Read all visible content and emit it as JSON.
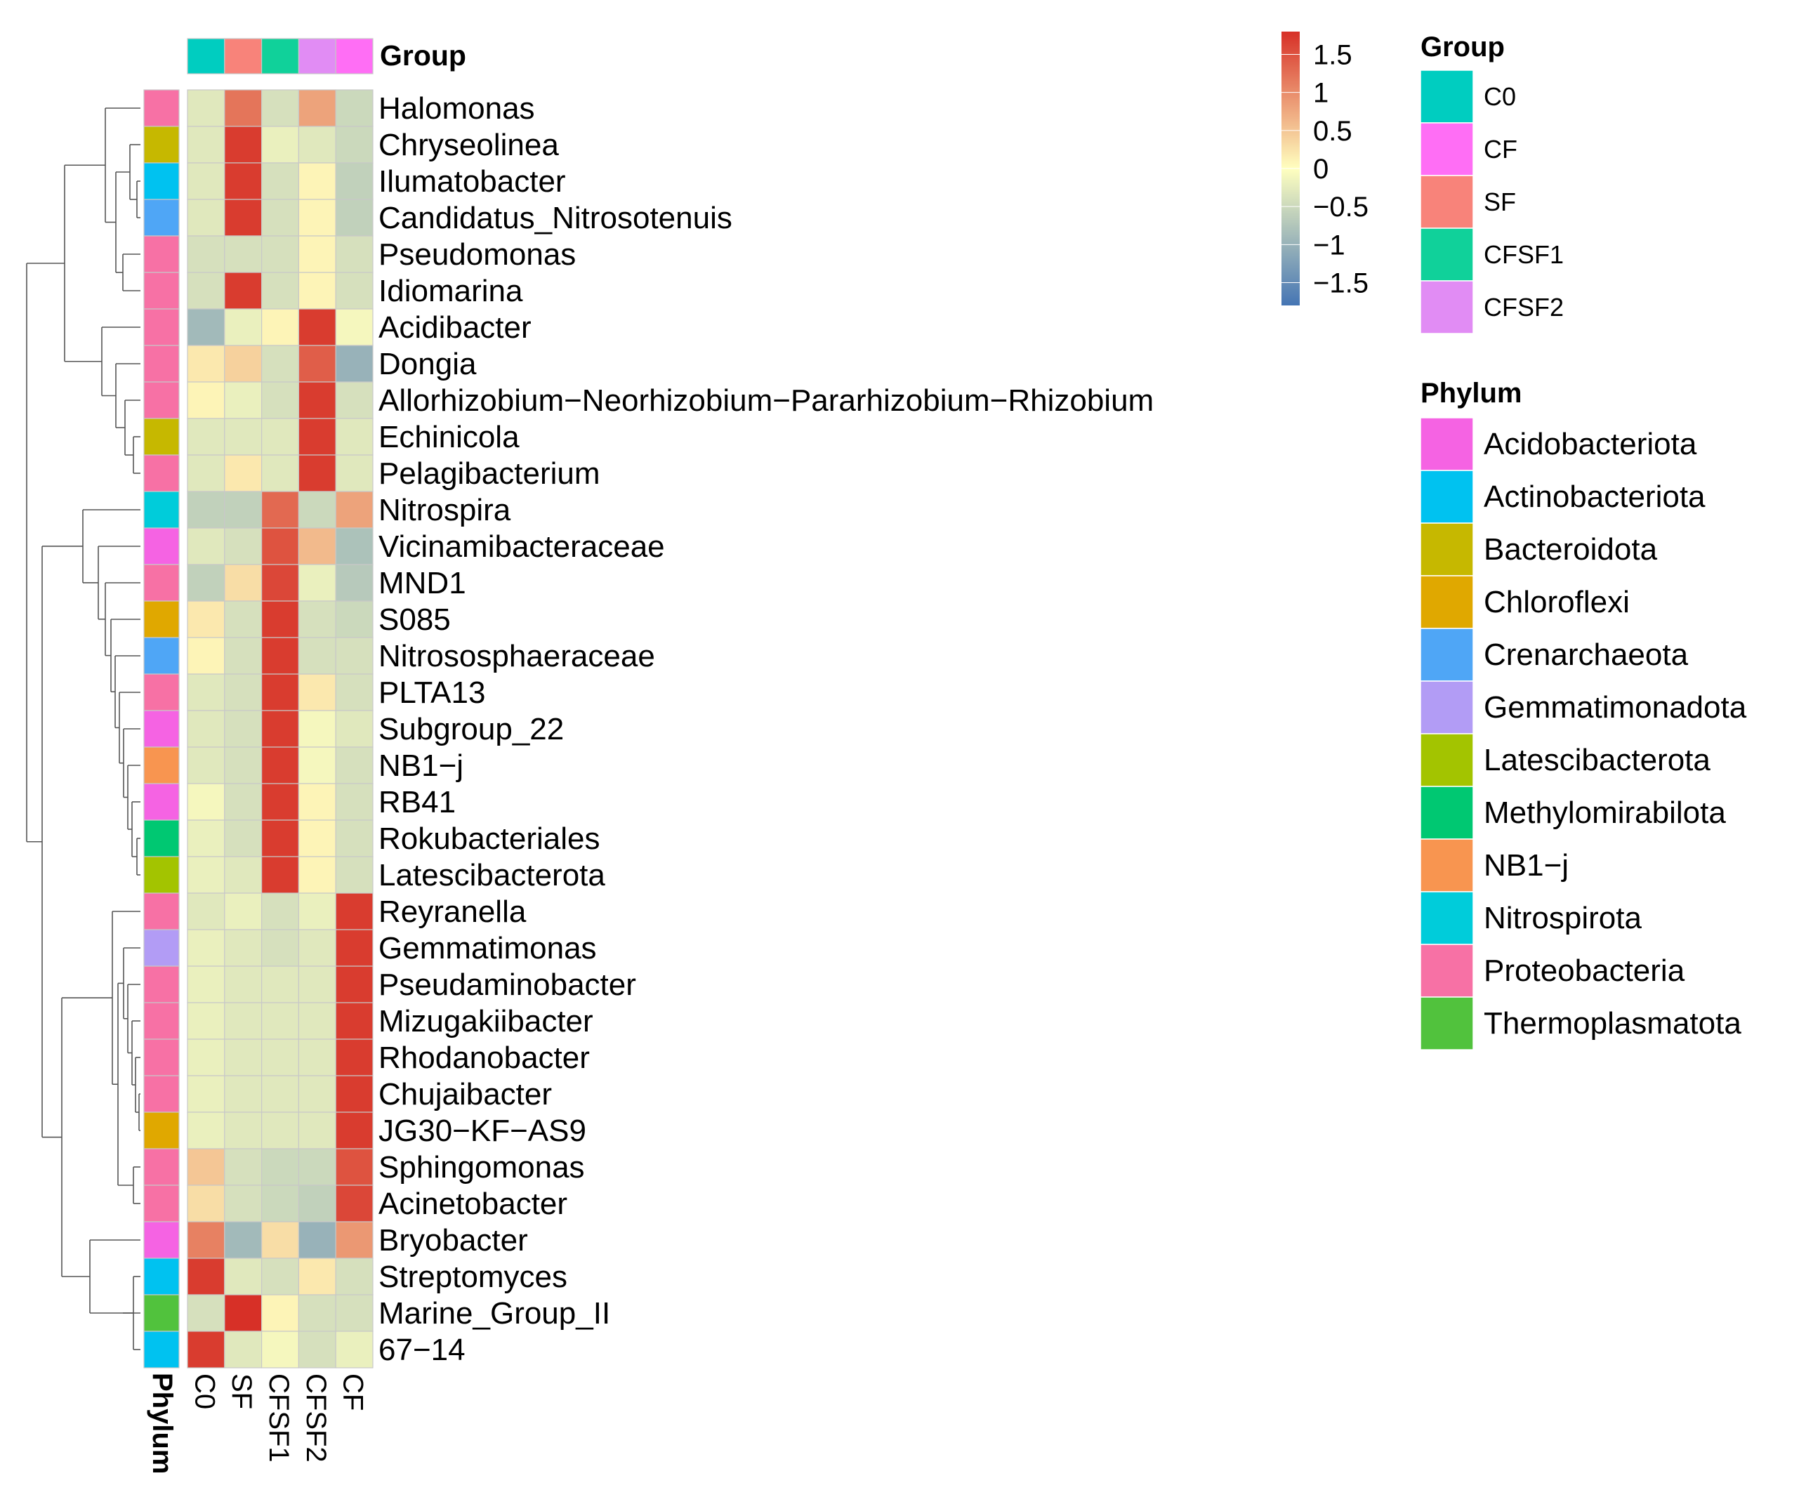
{
  "chart_data": {
    "type": "heatmap",
    "group_annotation_label": "Group",
    "phylum_annotation_label": "Phylum",
    "columns": [
      "C0",
      "SF",
      "CFSF1",
      "CFSF2",
      "CF"
    ],
    "column_groups": [
      "C0",
      "SF",
      "CFSF1",
      "CFSF2",
      "CF"
    ],
    "rows": [
      {
        "name": "Halomonas",
        "phylum": "Proteobacteria",
        "values": [
          -0.3,
          1.2,
          -0.4,
          0.8,
          -0.5
        ]
      },
      {
        "name": "Chryseolinea",
        "phylum": "Bacteroidota",
        "values": [
          -0.3,
          1.7,
          -0.2,
          -0.3,
          -0.5
        ]
      },
      {
        "name": "Ilumatobacter",
        "phylum": "Actinobacteriota",
        "values": [
          -0.3,
          1.7,
          -0.4,
          0.1,
          -0.6
        ]
      },
      {
        "name": "Candidatus_Nitrosotenuis",
        "phylum": "Crenarchaeota",
        "values": [
          -0.3,
          1.7,
          -0.4,
          0.1,
          -0.6
        ]
      },
      {
        "name": "Pseudomonas",
        "phylum": "Proteobacteria",
        "values": [
          -0.4,
          -0.4,
          -0.4,
          0.1,
          -0.4
        ]
      },
      {
        "name": "Idiomarina",
        "phylum": "Proteobacteria",
        "values": [
          -0.4,
          1.7,
          -0.4,
          0.1,
          -0.4
        ]
      },
      {
        "name": "Acidibacter",
        "phylum": "Proteobacteria",
        "values": [
          -0.9,
          -0.2,
          0.1,
          1.7,
          -0.1
        ]
      },
      {
        "name": "Dongia",
        "phylum": "Proteobacteria",
        "values": [
          0.2,
          0.4,
          -0.4,
          1.4,
          -1.0
        ]
      },
      {
        "name": "Allorhizobium-Neorhizobium-Pararhizobium-Rhizobium",
        "phylum": "Proteobacteria",
        "values": [
          0.1,
          -0.2,
          -0.4,
          1.7,
          -0.4
        ]
      },
      {
        "name": "Echinicola",
        "phylum": "Bacteroidota",
        "values": [
          -0.3,
          -0.3,
          -0.3,
          1.7,
          -0.3
        ]
      },
      {
        "name": "Pelagibacterium",
        "phylum": "Proteobacteria",
        "values": [
          -0.3,
          0.2,
          -0.3,
          1.7,
          -0.3
        ]
      },
      {
        "name": "Nitrospira",
        "phylum": "Nitrospirota",
        "values": [
          -0.6,
          -0.6,
          1.3,
          -0.5,
          0.8
        ]
      },
      {
        "name": "Vicinamibacteraceae",
        "phylum": "Acidobacteriota",
        "values": [
          -0.3,
          -0.4,
          1.5,
          0.6,
          -0.8
        ]
      },
      {
        "name": "MND1",
        "phylum": "Proteobacteria",
        "values": [
          -0.6,
          0.3,
          1.6,
          -0.2,
          -0.7
        ]
      },
      {
        "name": "S085",
        "phylum": "Chloroflexi",
        "values": [
          0.2,
          -0.4,
          1.7,
          -0.4,
          -0.5
        ]
      },
      {
        "name": "Nitrososphaeraceae",
        "phylum": "Crenarchaeota",
        "values": [
          0.1,
          -0.4,
          1.7,
          -0.4,
          -0.4
        ]
      },
      {
        "name": "PLTA13",
        "phylum": "Proteobacteria",
        "values": [
          -0.3,
          -0.4,
          1.7,
          0.2,
          -0.4
        ]
      },
      {
        "name": "Subgroup_22",
        "phylum": "Acidobacteriota",
        "values": [
          -0.3,
          -0.4,
          1.7,
          -0.1,
          -0.3
        ]
      },
      {
        "name": "NB1-j",
        "phylum": "NB1-j",
        "values": [
          -0.3,
          -0.4,
          1.7,
          -0.1,
          -0.4
        ]
      },
      {
        "name": "RB41",
        "phylum": "Acidobacteriota",
        "values": [
          -0.1,
          -0.4,
          1.7,
          0.1,
          -0.4
        ]
      },
      {
        "name": "Rokubacteriales",
        "phylum": "Methylomirabilota",
        "values": [
          -0.2,
          -0.4,
          1.7,
          0.1,
          -0.4
        ]
      },
      {
        "name": "Latescibacterota",
        "phylum": "Latescibacterota",
        "values": [
          -0.2,
          -0.3,
          1.7,
          0.1,
          -0.4
        ]
      },
      {
        "name": "Reyranella",
        "phylum": "Proteobacteria",
        "values": [
          -0.3,
          -0.2,
          -0.4,
          -0.2,
          1.7
        ]
      },
      {
        "name": "Gemmatimonas",
        "phylum": "Gemmatimonadota",
        "values": [
          -0.2,
          -0.3,
          -0.4,
          -0.3,
          1.7
        ]
      },
      {
        "name": "Pseudaminobacter",
        "phylum": "Proteobacteria",
        "values": [
          -0.2,
          -0.3,
          -0.3,
          -0.3,
          1.7
        ]
      },
      {
        "name": "Mizugakiibacter",
        "phylum": "Proteobacteria",
        "values": [
          -0.2,
          -0.3,
          -0.3,
          -0.3,
          1.7
        ]
      },
      {
        "name": "Rhodanobacter",
        "phylum": "Proteobacteria",
        "values": [
          -0.2,
          -0.3,
          -0.3,
          -0.3,
          1.7
        ]
      },
      {
        "name": "Chujaibacter",
        "phylum": "Proteobacteria",
        "values": [
          -0.2,
          -0.3,
          -0.3,
          -0.3,
          1.7
        ]
      },
      {
        "name": "JG30-KF-AS9",
        "phylum": "Chloroflexi",
        "values": [
          -0.2,
          -0.3,
          -0.3,
          -0.3,
          1.7
        ]
      },
      {
        "name": "Sphingomonas",
        "phylum": "Proteobacteria",
        "values": [
          0.5,
          -0.4,
          -0.5,
          -0.5,
          1.5
        ]
      },
      {
        "name": "Acinetobacter",
        "phylum": "Proteobacteria",
        "values": [
          0.3,
          -0.4,
          -0.5,
          -0.6,
          1.6
        ]
      },
      {
        "name": "Bryobacter",
        "phylum": "Acidobacteriota",
        "values": [
          1.1,
          -0.9,
          0.3,
          -1.0,
          0.9
        ]
      },
      {
        "name": "Streptomyces",
        "phylum": "Actinobacteriota",
        "values": [
          1.7,
          -0.3,
          -0.4,
          0.2,
          -0.4
        ]
      },
      {
        "name": "Marine_Group_II",
        "phylum": "Thermoplasmatota",
        "values": [
          -0.4,
          1.8,
          0.1,
          -0.4,
          -0.4
        ]
      },
      {
        "name": "67-14",
        "phylum": "Actinobacteriota",
        "values": [
          1.7,
          -0.3,
          -0.1,
          -0.4,
          -0.2
        ]
      }
    ],
    "color_scale": {
      "min": -1.8,
      "max": 1.8,
      "low_color": "#4575b4",
      "mid_color": "#ffffbf",
      "high_color": "#d73027",
      "ticks": [
        1.5,
        1,
        0.5,
        0,
        -0.5,
        -1,
        -1.5
      ],
      "tick_labels": [
        "1.5",
        "1",
        "0.5",
        "0",
        "−0.5",
        "−1",
        "−1.5"
      ]
    },
    "group_legend": {
      "title": "Group",
      "items": [
        {
          "label": "C0",
          "color": "#00CDC0"
        },
        {
          "label": "CF",
          "color": "#FF6EF5"
        },
        {
          "label": "SF",
          "color": "#F8837A"
        },
        {
          "label": "CFSF1",
          "color": "#10D19A"
        },
        {
          "label": "CFSF2",
          "color": "#E18CF4"
        }
      ]
    },
    "phylum_legend": {
      "title": "Phylum",
      "items": [
        {
          "label": "Acidobacteriota",
          "color": "#F563E3"
        },
        {
          "label": "Actinobacteriota",
          "color": "#00C2F0"
        },
        {
          "label": "Bacteroidota",
          "color": "#C6B800"
        },
        {
          "label": "Chloroflexi",
          "color": "#E0A800"
        },
        {
          "label": "Crenarchaeota",
          "color": "#4FA6F6"
        },
        {
          "label": "Gemmatimonadota",
          "color": "#B29CF5"
        },
        {
          "label": "Latescibacterota",
          "color": "#A3C400"
        },
        {
          "label": "Methylomirabilota",
          "color": "#00C872"
        },
        {
          "label": "NB1−j",
          "color": "#F89550"
        },
        {
          "label": "Nitrospirota",
          "color": "#00CCDA"
        },
        {
          "label": "Proteobacteria",
          "color": "#F771A5"
        },
        {
          "label": "Thermoplasmatota",
          "color": "#51C23D"
        }
      ]
    }
  }
}
